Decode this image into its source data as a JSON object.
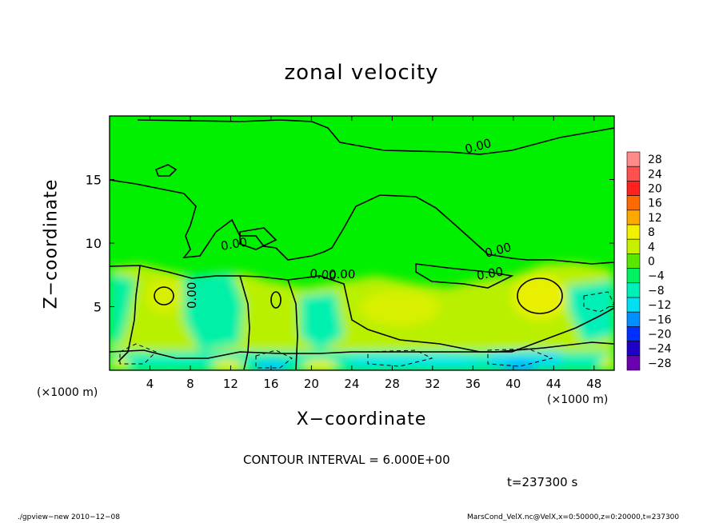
{
  "chart_data": {
    "type": "heatmap",
    "title": "zonal velocity",
    "xlabel": "X−coordinate",
    "ylabel": "Z−coordinate",
    "x_unit": "(×1000 m)",
    "y_unit": "(×1000 m)",
    "xlim": [
      0,
      50
    ],
    "ylim": [
      0,
      20
    ],
    "x_ticks": [
      4,
      8,
      12,
      16,
      20,
      24,
      28,
      32,
      36,
      40,
      44,
      48
    ],
    "y_ticks": [
      5,
      10,
      15
    ],
    "x_tick_labels": [
      "4",
      "8",
      "12",
      "16",
      "20",
      "24",
      "28",
      "32",
      "36",
      "40",
      "44",
      "48"
    ],
    "y_tick_labels": [
      "5",
      "10",
      "15"
    ],
    "colorbar": {
      "levels": [
        28,
        24,
        20,
        16,
        12,
        8,
        4,
        0,
        -4,
        -8,
        -12,
        -16,
        -20,
        -24,
        -28
      ],
      "labels": [
        "28",
        "24",
        "20",
        "16",
        "12",
        "8",
        "4",
        "0",
        "−4",
        "−8",
        "−12",
        "−16",
        "−20",
        "−24",
        "−28"
      ],
      "colors": [
        "#ff8a8a",
        "#ff5050",
        "#ff2020",
        "#ff6a00",
        "#ffa800",
        "#f0f000",
        "#c8f000",
        "#58e800",
        "#00f060",
        "#00f0b8",
        "#00e0f0",
        "#0090ff",
        "#0030ff",
        "#2000c8",
        "#6a00b0"
      ]
    },
    "contour_labels": [
      "0.00",
      "0.00",
      "0.00",
      "0.00",
      "0.00",
      "0.00",
      "0.00"
    ],
    "contour_interval_text": "CONTOUR INTERVAL = 6.000E+00"
  },
  "annotations": {
    "time": "t=237300 s",
    "footer_left": "./gpview−new   2010−12−08",
    "footer_right": "MarsCond_VelX.nc@VelX,x=0:50000,z=0:20000,t=237300"
  },
  "colors": {
    "background_field": "#00f000",
    "positive_blob": "#b8f000",
    "strong_positive": "#e8f000",
    "negative_blob": "#00f090",
    "strong_negative": "#00e8e8"
  }
}
